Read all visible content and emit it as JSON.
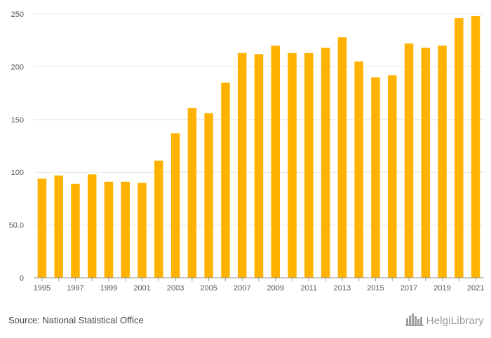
{
  "chart_data": {
    "type": "bar",
    "title": "",
    "xlabel": "",
    "ylabel": "",
    "ylim": [
      0,
      250
    ],
    "yticks": [
      0,
      50,
      100,
      150,
      200,
      250
    ],
    "ytick_labels": [
      "0",
      "50.0",
      "100",
      "150",
      "200",
      "250"
    ],
    "categories": [
      "1995",
      "1996",
      "1997",
      "1998",
      "1999",
      "2000",
      "2001",
      "2002",
      "2003",
      "2004",
      "2005",
      "2006",
      "2007",
      "2008",
      "2009",
      "2010",
      "2011",
      "2012",
      "2013",
      "2014",
      "2015",
      "2016",
      "2017",
      "2018",
      "2019",
      "2020",
      "2021"
    ],
    "xtick_labels": [
      "1995",
      "",
      "1997",
      "",
      "1999",
      "",
      "2001",
      "",
      "2003",
      "",
      "2005",
      "",
      "2007",
      "",
      "2009",
      "",
      "2011",
      "",
      "2013",
      "",
      "2015",
      "",
      "2017",
      "",
      "2019",
      "",
      "2021"
    ],
    "values": [
      94,
      97,
      89,
      98,
      91,
      91,
      90,
      111,
      137,
      161,
      156,
      185,
      213,
      212,
      220,
      213,
      213,
      218,
      228,
      205,
      190,
      192,
      222,
      218,
      220,
      246,
      248
    ],
    "grid": true,
    "bar_color": "#FFB300"
  },
  "footer": {
    "source": "Source: National Statistical Office",
    "brand": "HelgiLibrary",
    "brand_icon": "city-skyline-icon"
  }
}
